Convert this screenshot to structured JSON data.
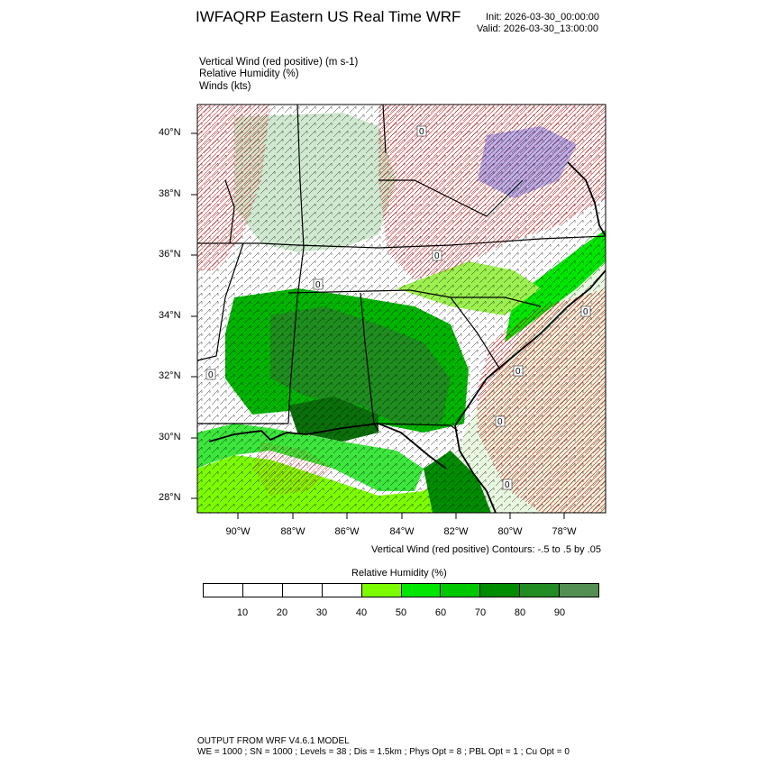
{
  "header": {
    "title": "IWFAQRP Eastern US Real Time WRF",
    "init": "Init: 2026-03-30_00:00:00",
    "valid": "Valid: 2026-03-30_13:00:00"
  },
  "fields": {
    "vertical_wind": "Vertical Wind (red positive)   (m s-1)",
    "relative_humidity": "Relative Humidity   (%)",
    "winds": "Winds   (kts)"
  },
  "map": {
    "lat_labels": [
      "40°N",
      "38°N",
      "36°N",
      "34°N",
      "32°N",
      "30°N",
      "28°N"
    ],
    "lon_labels": [
      "90°W",
      "88°W",
      "86°W",
      "84°W",
      "82°W",
      "80°W",
      "78°W"
    ],
    "contour_label": "0"
  },
  "contour_note": "Vertical Wind (red positive) Contours: -.5 to .5 by .05",
  "legend": {
    "title": "Relative Humidity  (%)",
    "ticks": [
      "10",
      "20",
      "30",
      "40",
      "50",
      "60",
      "70",
      "80",
      "90"
    ],
    "colors": [
      "#ffffff",
      "#ffffff",
      "#ffffff",
      "#ffffff",
      "#7cfc00",
      "#00e600",
      "#00c800",
      "#008c00",
      "#228b22",
      "#538e53"
    ]
  },
  "footer": {
    "line1": "OUTPUT FROM WRF V4.6.1 MODEL",
    "line2": "WE = 1000 ; SN = 1000 ; Levels = 38 ; Dis = 1.5km ; Phys Opt = 8 ; PBL Opt = 1 ; Cu Opt = 0"
  }
}
